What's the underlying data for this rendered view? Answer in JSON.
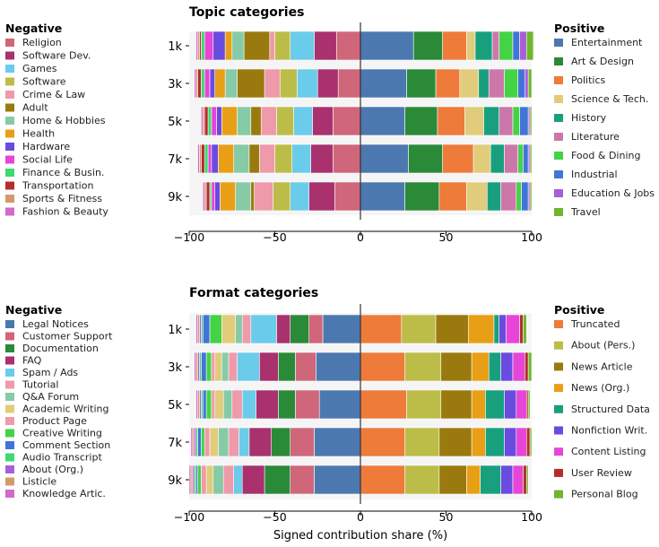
{
  "chart_data": [
    {
      "type": "bar",
      "title": "Topic categories",
      "xlabel": "",
      "xlim": [
        -100,
        100
      ],
      "xticks": [
        "−100",
        "−50",
        "0",
        "50",
        "100"
      ],
      "categories": [
        "1k",
        "3k",
        "5k",
        "7k",
        "9k"
      ],
      "negative_title": "Negative",
      "positive_title": "Positive",
      "negative_series": [
        {
          "name": "Religion",
          "color": "#d0667a",
          "values": [
            14,
            13,
            16,
            16,
            15
          ]
        },
        {
          "name": "Software Dev.",
          "color": "#a8316e",
          "values": [
            13,
            12,
            12,
            13,
            15
          ]
        },
        {
          "name": "Games",
          "color": "#6bcbea",
          "values": [
            14,
            12,
            11,
            11,
            11
          ]
        },
        {
          "name": "Software",
          "color": "#bcbd48",
          "values": [
            9,
            10,
            10,
            10,
            10
          ]
        },
        {
          "name": "Crime & Law",
          "color": "#ee9aaa",
          "values": [
            3,
            9,
            9,
            9,
            11
          ]
        },
        {
          "name": "Adult",
          "color": "#9a7a0e",
          "values": [
            15,
            16,
            6,
            6,
            2
          ]
        },
        {
          "name": "Home & Hobbies",
          "color": "#86cba6",
          "values": [
            7,
            7,
            8,
            9,
            9
          ]
        },
        {
          "name": "Health",
          "color": "#e89f16",
          "values": [
            4,
            6,
            9,
            9,
            9
          ]
        },
        {
          "name": "Hardware",
          "color": "#6a4be0",
          "values": [
            7,
            3,
            3,
            4,
            3
          ]
        },
        {
          "name": "Social Life",
          "color": "#e645d7",
          "values": [
            5,
            3,
            3,
            2,
            2
          ]
        },
        {
          "name": "Finance & Busin.",
          "color": "#3ed970",
          "values": [
            2,
            2,
            2,
            2,
            1
          ]
        },
        {
          "name": "Transportation",
          "color": "#b22e2b",
          "values": [
            1,
            2,
            2,
            2,
            2
          ]
        },
        {
          "name": "Sports & Fitness",
          "color": "#d39a6c",
          "values": [
            1,
            1,
            1,
            1,
            1
          ]
        },
        {
          "name": "Fashion & Beauty",
          "color": "#d36ac8",
          "values": [
            1,
            1,
            1,
            1,
            1
          ]
        }
      ],
      "positive_series": [
        {
          "name": "Entertainment",
          "color": "#4c78b0",
          "values": [
            31,
            27,
            26,
            28,
            26
          ]
        },
        {
          "name": "Art & Design",
          "color": "#2a8a38",
          "values": [
            17,
            17,
            19,
            20,
            20
          ]
        },
        {
          "name": "Politics",
          "color": "#ee7b3a",
          "values": [
            14,
            14,
            16,
            18,
            16
          ]
        },
        {
          "name": "Science & Tech.",
          "color": "#e0cc7a",
          "values": [
            5,
            11,
            11,
            10,
            12
          ]
        },
        {
          "name": "History",
          "color": "#18a07e",
          "values": [
            10,
            6,
            9,
            8,
            8
          ]
        },
        {
          "name": "Literature",
          "color": "#cc77aa",
          "values": [
            4,
            9,
            8,
            8,
            9
          ]
        },
        {
          "name": "Food & Dining",
          "color": "#43d345",
          "values": [
            8,
            8,
            4,
            3,
            3
          ]
        },
        {
          "name": "Industrial",
          "color": "#4274d8",
          "values": [
            4,
            4,
            5,
            3,
            4
          ]
        },
        {
          "name": "Education & Jobs",
          "color": "#a95ed8",
          "values": [
            4,
            2,
            1,
            1,
            1
          ]
        },
        {
          "name": "Travel",
          "color": "#6eb62c",
          "values": [
            4,
            2,
            1,
            1,
            1
          ]
        }
      ]
    },
    {
      "type": "bar",
      "title": "Format categories",
      "xlabel": "Signed contribution share (%)",
      "xlim": [
        -100,
        100
      ],
      "xticks": [
        "−100",
        "−50",
        "0",
        "50",
        "100"
      ],
      "categories": [
        "1k",
        "3k",
        "5k",
        "7k",
        "9k"
      ],
      "negative_title": "Negative",
      "positive_title": "Positive",
      "negative_series": [
        {
          "name": "Legal Notices",
          "color": "#4c78b0",
          "values": [
            22,
            26,
            24,
            27,
            27
          ]
        },
        {
          "name": "Customer Support",
          "color": "#d0667a",
          "values": [
            8,
            12,
            14,
            14,
            14
          ]
        },
        {
          "name": "Documentation",
          "color": "#2a8a38",
          "values": [
            11,
            10,
            10,
            11,
            15
          ]
        },
        {
          "name": "FAQ",
          "color": "#a8316e",
          "values": [
            8,
            11,
            13,
            13,
            13
          ]
        },
        {
          "name": "Spam / Ads",
          "color": "#6bcbea",
          "values": [
            15,
            13,
            8,
            6,
            5
          ]
        },
        {
          "name": "Tutorial",
          "color": "#ee9aaa",
          "values": [
            5,
            5,
            6,
            6,
            6
          ]
        },
        {
          "name": "Q&A Forum",
          "color": "#86cba6",
          "values": [
            4,
            4,
            5,
            6,
            6
          ]
        },
        {
          "name": "Academic Writing",
          "color": "#e0cc7a",
          "values": [
            8,
            4,
            5,
            5,
            4
          ]
        },
        {
          "name": "Product Page",
          "color": "#ee9aaa",
          "values": [
            0,
            2,
            2,
            3,
            3
          ]
        },
        {
          "name": "Creative Writing",
          "color": "#43d345",
          "values": [
            7,
            3,
            3,
            2,
            2
          ]
        },
        {
          "name": "Comment Section",
          "color": "#4274d8",
          "values": [
            4,
            3,
            2,
            2,
            1
          ]
        },
        {
          "name": "Audio Transcript",
          "color": "#3ed970",
          "values": [
            1,
            1,
            1,
            1,
            1
          ]
        },
        {
          "name": "About (Org.)",
          "color": "#a95ed8",
          "values": [
            1,
            1,
            1,
            1,
            1
          ]
        },
        {
          "name": "Listicle",
          "color": "#d39a6c",
          "values": [
            1,
            1,
            1,
            1,
            1
          ]
        },
        {
          "name": "Knowledge Artic.",
          "color": "#d36ac8",
          "values": [
            1,
            1,
            1,
            1,
            1
          ]
        }
      ],
      "positive_series": [
        {
          "name": "Truncated",
          "color": "#ee7b3a",
          "values": [
            24,
            26,
            27,
            26,
            26
          ]
        },
        {
          "name": "About (Pers.)",
          "color": "#bcbd48",
          "values": [
            20,
            21,
            20,
            20,
            20
          ]
        },
        {
          "name": "News Article",
          "color": "#9a7a0e",
          "values": [
            19,
            18,
            18,
            19,
            16
          ]
        },
        {
          "name": "News (Org.)",
          "color": "#e89f16",
          "values": [
            15,
            10,
            8,
            8,
            8
          ]
        },
        {
          "name": "Structured Data",
          "color": "#18a07e",
          "values": [
            3,
            7,
            11,
            11,
            12
          ]
        },
        {
          "name": "Nonfiction Writ.",
          "color": "#6a4be0",
          "values": [
            4,
            7,
            7,
            7,
            7
          ]
        },
        {
          "name": "Content Listing",
          "color": "#e645d7",
          "values": [
            8,
            7,
            6,
            6,
            6
          ]
        },
        {
          "name": "User Review",
          "color": "#b22e2b",
          "values": [
            2,
            2,
            1,
            2,
            2
          ]
        },
        {
          "name": "Personal Blog",
          "color": "#6eb62c",
          "values": [
            2,
            2,
            1,
            1,
            1
          ]
        }
      ]
    }
  ]
}
